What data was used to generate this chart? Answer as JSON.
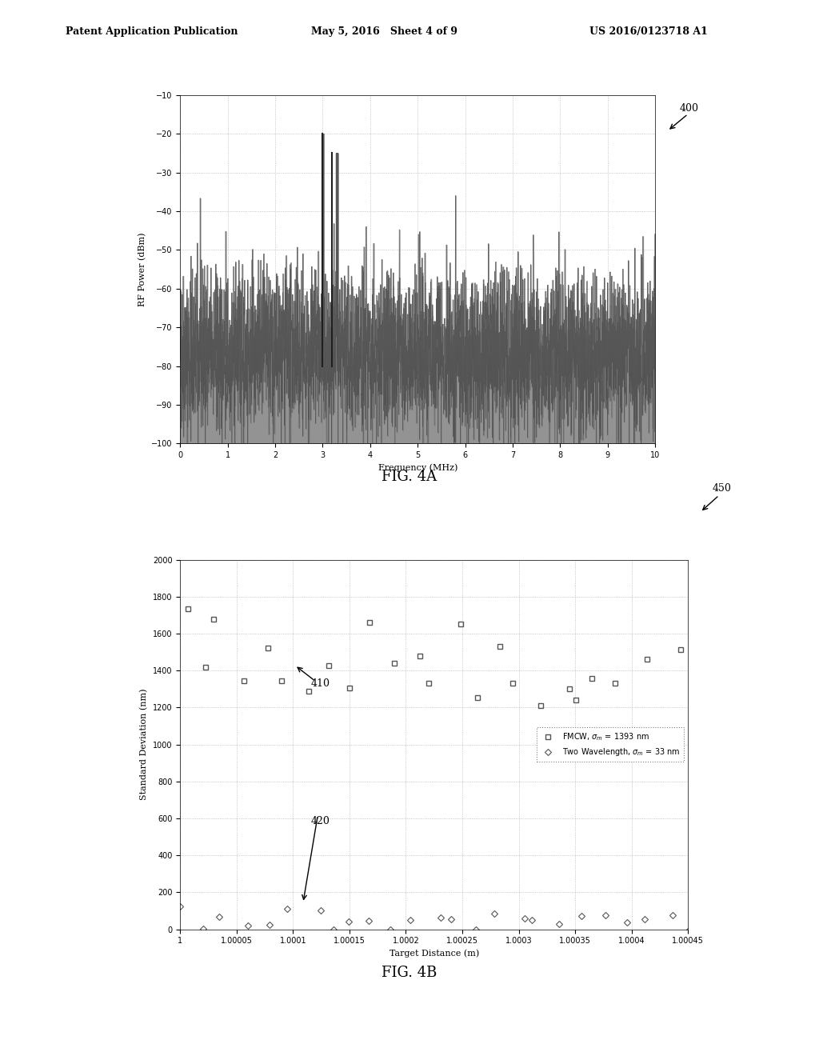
{
  "header_left": "Patent Application Publication",
  "header_mid": "May 5, 2016   Sheet 4 of 9",
  "header_right": "US 2016/0123718 A1",
  "fig4a_label": "FIG. 4A",
  "fig4b_label": "FIG. 4B",
  "ref400": "400",
  "ref450": "450",
  "ref410": "410",
  "ref420": "420",
  "fig4a": {
    "xlabel": "Frequency (MHz)",
    "ylabel": "RF Power (dBm)",
    "xlim": [
      0,
      10
    ],
    "ylim": [
      -100,
      -10
    ],
    "xticks": [
      0,
      1,
      2,
      3,
      4,
      5,
      6,
      7,
      8,
      9,
      10
    ],
    "yticks": [
      -10,
      -20,
      -30,
      -40,
      -50,
      -60,
      -70,
      -80,
      -90,
      -100
    ],
    "peak1_x": 3.0,
    "peak1_y": -20,
    "peak2_x": 3.3,
    "peak2_y": -25,
    "noise_floor": -75,
    "noise_amplitude": 10
  },
  "fig4b": {
    "xlabel": "Target Distance (m)",
    "ylabel": "Standard Deviation (nm)",
    "xlim_start": 1.0,
    "xlim_end": 1.00045,
    "ylim": [
      0,
      2000
    ],
    "yticks": [
      0,
      200,
      400,
      600,
      800,
      1000,
      1200,
      1400,
      1600,
      1800,
      2000
    ],
    "legend1": "FMCW, σ_m = 1393 nm",
    "legend2": "Two Wavelength, σ_m = 33 nm",
    "fmcw_color": "#555555",
    "two_wl_color": "#555555",
    "background_color": "#ffffff"
  }
}
